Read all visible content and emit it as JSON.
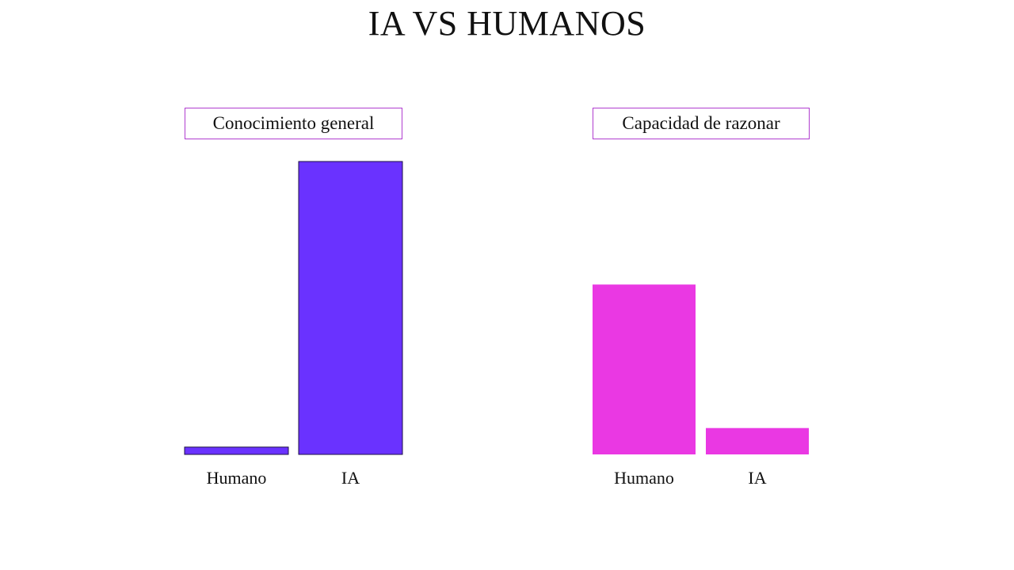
{
  "page": {
    "title": "IA VS HUMANOS"
  },
  "chart_data": [
    {
      "type": "bar",
      "title": "Conocimiento general",
      "categories": [
        "Humano",
        "IA"
      ],
      "values": [
        2.5,
        100
      ],
      "ylim": [
        0,
        100
      ],
      "grid": false,
      "bar_color": "#6a32ff",
      "bar_stroke": "#1d1045"
    },
    {
      "type": "bar",
      "title": "Capacidad de razonar",
      "categories": [
        "Humano",
        "IA"
      ],
      "values": [
        58,
        9
      ],
      "ylim": [
        0,
        100
      ],
      "grid": false,
      "bar_color": "#ea38e3",
      "bar_stroke": "none"
    }
  ]
}
